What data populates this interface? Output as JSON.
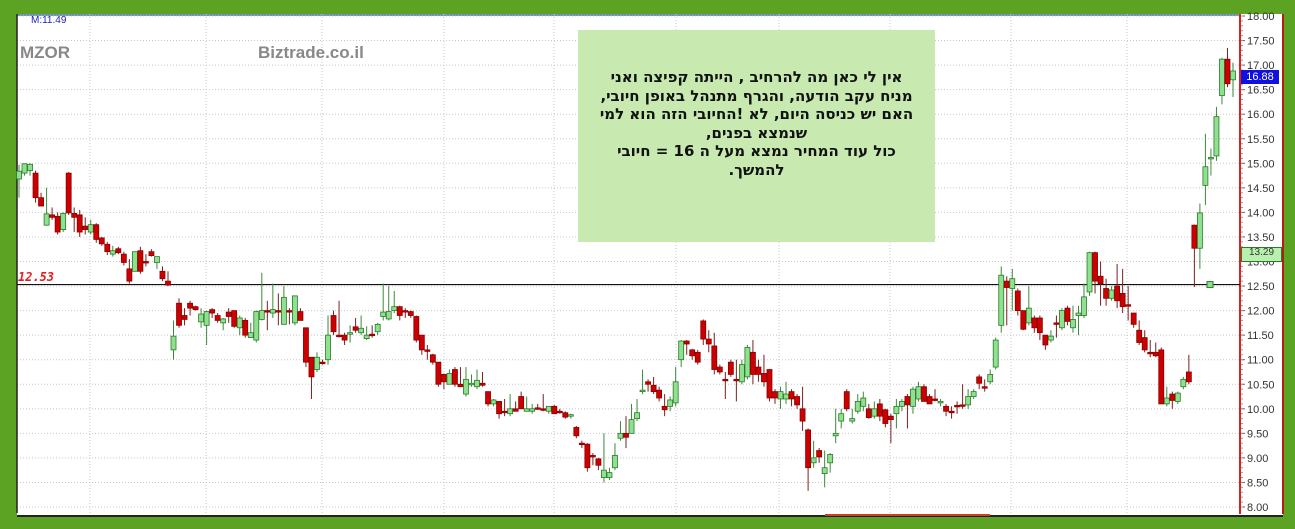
{
  "header": {
    "indicator_label": "M:11.49",
    "symbol": "MZOR",
    "watermark": "Biztrade.co.il"
  },
  "reference_line": {
    "label": "12.53",
    "value": 12.53,
    "color": "#e02020"
  },
  "note": {
    "lines": [
      "אין לי כאן מה להרחיב , הייתה קפיצה ואני",
      "מניח עקב הודעה, והגרף מתנהל באופן חיובי,",
      "האם יש כניסה היום, לא !החיובי הזה הוא למי",
      "שנמצא בפנים,",
      "כול עוד המחיר נמצא מעל ה 16 = חיובי",
      "להמשך."
    ],
    "background": "#c8eab0"
  },
  "price_badges": {
    "last": "16.88",
    "previous": "13.29"
  },
  "chart_data": {
    "type": "candlestick",
    "title": "",
    "xlabel": "",
    "ylabel": "",
    "ylim": [
      8.0,
      18.0
    ],
    "grid": true,
    "y_axis_side": "right",
    "y_ticks": [
      "8.00",
      "8.50",
      "9.00",
      "9.50",
      "10.00",
      "10.50",
      "11.00",
      "11.50",
      "12.00",
      "12.50",
      "13.00",
      "13.50",
      "14.00",
      "14.50",
      "15.00",
      "15.50",
      "16.00",
      "16.50",
      "17.00",
      "17.50",
      "18.00"
    ],
    "colors": {
      "up": "#8fe08f",
      "down": "#cc0000"
    },
    "ohlc": [
      [
        14.68,
        14.97,
        14.3,
        14.84
      ],
      [
        14.8,
        15.0,
        14.75,
        14.99
      ],
      [
        14.85,
        15.0,
        14.75,
        14.98
      ],
      [
        14.8,
        14.85,
        14.2,
        14.3
      ],
      [
        14.3,
        14.4,
        14.12,
        14.13
      ],
      [
        13.74,
        14.5,
        13.73,
        13.97
      ],
      [
        13.95,
        14.1,
        13.85,
        13.9
      ],
      [
        13.92,
        14.0,
        13.55,
        13.6
      ],
      [
        13.65,
        14.0,
        13.6,
        13.98
      ],
      [
        14.8,
        14.82,
        13.95,
        13.99
      ],
      [
        13.98,
        14.1,
        13.6,
        13.9
      ],
      [
        13.95,
        14.05,
        13.5,
        13.6
      ],
      [
        13.72,
        13.9,
        13.55,
        13.65
      ],
      [
        13.6,
        13.85,
        13.55,
        13.75
      ],
      [
        13.75,
        13.78,
        13.38,
        13.45
      ],
      [
        13.48,
        13.5,
        13.32,
        13.36
      ],
      [
        13.35,
        13.4,
        13.13,
        13.2
      ],
      [
        13.15,
        13.32,
        13.1,
        13.22
      ],
      [
        13.26,
        13.3,
        13.15,
        13.18
      ],
      [
        13.15,
        13.2,
        12.92,
        12.98
      ],
      [
        12.85,
        13.05,
        12.55,
        12.6
      ],
      [
        12.8,
        13.2,
        12.8,
        13.2
      ],
      [
        13.22,
        13.3,
        12.75,
        12.8
      ],
      [
        13.0,
        13.15,
        12.9,
        12.97
      ],
      [
        13.2,
        13.25,
        13.1,
        13.12
      ],
      [
        12.98,
        13.05,
        12.85,
        13.1
      ],
      [
        12.8,
        12.9,
        12.6,
        12.65
      ],
      [
        12.6,
        12.8,
        12.5,
        12.52
      ],
      [
        11.2,
        11.8,
        11.0,
        11.48
      ],
      [
        12.15,
        12.25,
        11.65,
        11.7
      ],
      [
        11.9,
        12.05,
        11.7,
        11.82
      ],
      [
        12.15,
        12.2,
        11.9,
        12.05
      ],
      [
        12.08,
        12.1,
        12.0,
        12.02
      ],
      [
        11.77,
        12.05,
        11.65,
        11.93
      ],
      [
        11.7,
        12.0,
        11.3,
        11.98
      ],
      [
        12.02,
        12.05,
        11.85,
        11.95
      ],
      [
        11.9,
        11.95,
        11.75,
        11.8
      ],
      [
        11.75,
        11.85,
        11.6,
        11.83
      ],
      [
        11.97,
        12.05,
        11.75,
        11.88
      ],
      [
        12.0,
        12.0,
        11.65,
        11.68
      ],
      [
        11.65,
        11.9,
        11.5,
        11.85
      ],
      [
        11.8,
        11.85,
        11.45,
        11.5
      ],
      [
        11.45,
        11.75,
        11.45,
        11.55
      ],
      [
        11.4,
        12.0,
        11.35,
        11.98
      ],
      [
        11.82,
        12.77,
        11.8,
        12.0
      ],
      [
        12.0,
        12.2,
        11.6,
        11.98
      ],
      [
        11.95,
        12.55,
        11.85,
        12.02
      ],
      [
        12.0,
        12.35,
        11.7,
        11.98
      ],
      [
        11.72,
        12.5,
        11.72,
        12.27
      ],
      [
        12.0,
        12.05,
        11.72,
        11.98
      ],
      [
        11.75,
        12.3,
        11.7,
        12.3
      ],
      [
        11.98,
        12.05,
        11.8,
        11.8
      ],
      [
        11.65,
        11.65,
        10.85,
        10.95
      ],
      [
        11.05,
        11.05,
        10.2,
        10.65
      ],
      [
        10.8,
        11.15,
        10.75,
        11.05
      ],
      [
        10.95,
        11.0,
        10.9,
        10.92
      ],
      [
        11.0,
        11.9,
        10.9,
        11.5
      ],
      [
        11.9,
        12.0,
        11.5,
        11.57
      ],
      [
        11.5,
        12.2,
        11.45,
        11.48
      ],
      [
        11.5,
        11.55,
        11.3,
        11.4
      ],
      [
        11.52,
        11.7,
        11.35,
        11.55
      ],
      [
        11.67,
        11.85,
        11.55,
        11.6
      ],
      [
        11.55,
        11.9,
        11.5,
        11.64
      ],
      [
        11.43,
        11.68,
        11.4,
        11.5
      ],
      [
        11.52,
        11.7,
        11.45,
        11.5
      ],
      [
        11.57,
        11.75,
        11.5,
        11.72
      ],
      [
        11.88,
        12.55,
        11.8,
        11.97
      ],
      [
        11.83,
        12.5,
        11.8,
        11.98
      ],
      [
        12.0,
        12.4,
        11.95,
        12.08
      ],
      [
        12.08,
        12.1,
        11.8,
        11.9
      ],
      [
        12.0,
        12.05,
        11.85,
        11.98
      ],
      [
        11.98,
        12.0,
        11.85,
        11.9
      ],
      [
        11.88,
        11.9,
        11.35,
        11.4
      ],
      [
        11.5,
        11.5,
        11.1,
        11.2
      ],
      [
        11.2,
        11.3,
        11.0,
        11.17
      ],
      [
        11.1,
        11.12,
        10.9,
        10.95
      ],
      [
        10.95,
        10.95,
        10.45,
        10.5
      ],
      [
        10.7,
        10.72,
        10.4,
        10.55
      ],
      [
        10.5,
        10.8,
        10.5,
        10.72
      ],
      [
        10.8,
        10.85,
        10.45,
        10.5
      ],
      [
        10.5,
        10.85,
        10.45,
        10.45
      ],
      [
        10.3,
        10.85,
        10.25,
        10.6
      ],
      [
        10.5,
        10.7,
        10.45,
        10.52
      ],
      [
        10.45,
        10.8,
        10.4,
        10.58
      ],
      [
        10.52,
        10.75,
        10.45,
        10.48
      ],
      [
        10.35,
        10.35,
        10.05,
        10.1
      ],
      [
        10.1,
        10.2,
        10.05,
        10.18
      ],
      [
        10.15,
        10.15,
        9.8,
        9.9
      ],
      [
        9.95,
        10.2,
        9.85,
        9.92
      ],
      [
        9.9,
        10.3,
        9.85,
        10.0
      ],
      [
        10.0,
        10.15,
        9.95,
        9.95
      ],
      [
        10.25,
        10.35,
        10.0,
        10.0
      ],
      [
        9.95,
        10.25,
        9.95,
        10.0
      ],
      [
        9.95,
        10.1,
        9.9,
        10.0
      ],
      [
        10.02,
        10.1,
        9.98,
        10.0
      ],
      [
        10.0,
        10.3,
        9.95,
        9.98
      ],
      [
        9.95,
        10.05,
        9.9,
        10.05
      ],
      [
        10.05,
        10.08,
        9.9,
        9.9
      ],
      [
        9.95,
        10.0,
        9.9,
        9.93
      ],
      [
        9.92,
        9.95,
        9.8,
        9.83
      ],
      [
        9.85,
        9.9,
        9.8,
        9.88
      ],
      [
        9.62,
        9.65,
        9.4,
        9.45
      ],
      [
        9.3,
        9.35,
        9.2,
        9.28
      ],
      [
        9.28,
        9.3,
        8.72,
        8.8
      ],
      [
        9.05,
        9.1,
        8.85,
        9.03
      ],
      [
        8.98,
        9.0,
        8.75,
        8.85
      ],
      [
        8.6,
        9.5,
        8.5,
        8.75
      ],
      [
        8.6,
        8.8,
        8.55,
        8.7
      ],
      [
        8.8,
        9.3,
        8.75,
        9.05
      ],
      [
        9.4,
        9.75,
        9.35,
        9.5
      ],
      [
        9.5,
        9.85,
        9.2,
        9.42
      ],
      [
        9.5,
        10.1,
        9.5,
        9.78
      ],
      [
        9.8,
        10.2,
        9.75,
        9.92
      ],
      [
        10.35,
        10.8,
        10.3,
        10.38
      ],
      [
        10.55,
        10.6,
        10.35,
        10.5
      ],
      [
        10.48,
        10.65,
        10.3,
        10.35
      ],
      [
        10.38,
        10.45,
        10.15,
        10.22
      ],
      [
        10.05,
        10.3,
        9.85,
        9.98
      ],
      [
        10.05,
        10.25,
        9.95,
        10.18
      ],
      [
        10.12,
        10.85,
        10.05,
        10.55
      ],
      [
        11.0,
        11.4,
        10.85,
        11.38
      ],
      [
        11.38,
        11.4,
        11.1,
        11.32
      ],
      [
        11.2,
        11.22,
        11.0,
        11.08
      ],
      [
        11.15,
        11.2,
        10.9,
        10.95
      ],
      [
        11.79,
        11.82,
        11.3,
        11.42
      ],
      [
        11.42,
        11.6,
        11.15,
        11.32
      ],
      [
        11.28,
        11.55,
        10.7,
        10.8
      ],
      [
        10.85,
        10.9,
        10.7,
        10.75
      ],
      [
        10.6,
        10.75,
        10.2,
        10.58
      ],
      [
        10.95,
        11.0,
        10.65,
        10.7
      ],
      [
        10.6,
        11.0,
        10.15,
        10.58
      ],
      [
        10.55,
        11.0,
        10.5,
        10.9
      ],
      [
        10.65,
        11.3,
        10.6,
        11.25
      ],
      [
        11.15,
        11.4,
        10.5,
        10.7
      ],
      [
        10.85,
        11.0,
        10.55,
        10.7
      ],
      [
        10.72,
        11.1,
        10.45,
        10.55
      ],
      [
        10.8,
        10.8,
        10.15,
        10.22
      ],
      [
        10.35,
        10.4,
        10.1,
        10.22
      ],
      [
        10.2,
        10.45,
        10.0,
        10.35
      ],
      [
        10.2,
        10.55,
        10.1,
        10.3
      ],
      [
        10.35,
        10.4,
        10.05,
        10.2
      ],
      [
        10.25,
        10.3,
        10.0,
        10.08
      ],
      [
        10.0,
        10.45,
        9.55,
        9.75
      ],
      [
        9.57,
        9.6,
        8.33,
        8.8
      ],
      [
        8.9,
        9.35,
        8.8,
        9.0
      ],
      [
        9.15,
        9.2,
        8.9,
        9.02
      ],
      [
        8.68,
        9.15,
        8.4,
        8.8
      ],
      [
        8.9,
        9.1,
        8.7,
        9.07
      ],
      [
        9.45,
        10.0,
        9.3,
        9.5
      ],
      [
        9.75,
        10.0,
        9.6,
        9.9
      ],
      [
        10.35,
        10.4,
        9.95,
        10.0
      ],
      [
        9.75,
        10.0,
        9.7,
        9.8
      ],
      [
        9.95,
        10.3,
        9.9,
        10.15
      ],
      [
        10.05,
        10.35,
        9.95,
        10.22
      ],
      [
        10.0,
        10.1,
        9.8,
        9.82
      ],
      [
        9.85,
        10.15,
        9.8,
        10.0
      ],
      [
        10.1,
        10.2,
        9.75,
        9.85
      ],
      [
        9.98,
        10.0,
        9.62,
        9.7
      ],
      [
        9.85,
        9.9,
        9.3,
        9.78
      ],
      [
        9.9,
        10.2,
        9.6,
        10.05
      ],
      [
        10.05,
        10.2,
        9.95,
        10.15
      ],
      [
        10.25,
        10.3,
        9.6,
        10.08
      ],
      [
        10.05,
        10.45,
        9.9,
        10.4
      ],
      [
        10.2,
        10.55,
        10.15,
        10.45
      ],
      [
        10.45,
        10.5,
        10.15,
        10.15
      ],
      [
        10.25,
        10.3,
        10.1,
        10.1
      ],
      [
        10.2,
        10.4,
        10.15,
        10.18
      ],
      [
        10.12,
        10.2,
        10.05,
        10.15
      ],
      [
        10.05,
        10.1,
        9.85,
        9.95
      ],
      [
        9.95,
        10.05,
        9.8,
        9.92
      ],
      [
        10.07,
        10.15,
        9.9,
        10.05
      ],
      [
        10.08,
        10.5,
        10.0,
        10.05
      ],
      [
        10.08,
        10.4,
        10.0,
        10.25
      ],
      [
        10.25,
        10.4,
        10.2,
        10.35
      ],
      [
        10.65,
        10.7,
        10.4,
        10.52
      ],
      [
        10.45,
        10.6,
        10.35,
        10.43
      ],
      [
        10.55,
        10.8,
        10.5,
        10.7
      ],
      [
        10.85,
        11.45,
        10.8,
        11.4
      ],
      [
        11.7,
        12.9,
        11.55,
        12.72
      ],
      [
        12.6,
        12.7,
        11.7,
        12.47
      ],
      [
        12.45,
        12.85,
        12.0,
        12.65
      ],
      [
        12.4,
        12.45,
        11.9,
        12.0
      ],
      [
        12.0,
        12.0,
        11.6,
        11.62
      ],
      [
        11.75,
        12.5,
        11.7,
        12.05
      ],
      [
        11.85,
        11.9,
        11.55,
        11.65
      ],
      [
        11.85,
        11.9,
        11.4,
        11.55
      ],
      [
        11.5,
        11.5,
        11.2,
        11.3
      ],
      [
        11.4,
        11.6,
        11.35,
        11.48
      ],
      [
        11.75,
        11.9,
        11.45,
        11.73
      ],
      [
        11.65,
        12.05,
        11.6,
        12.0
      ],
      [
        12.05,
        12.1,
        11.7,
        11.78
      ],
      [
        11.65,
        12.1,
        11.55,
        11.82
      ],
      [
        11.9,
        12.1,
        11.5,
        11.95
      ],
      [
        11.9,
        12.55,
        11.85,
        12.28
      ],
      [
        12.38,
        13.2,
        12.3,
        13.18
      ],
      [
        13.18,
        13.2,
        12.35,
        12.6
      ],
      [
        12.7,
        13.0,
        12.1,
        12.55
      ],
      [
        12.45,
        12.65,
        12.1,
        12.25
      ],
      [
        12.25,
        12.5,
        12.2,
        12.42
      ],
      [
        12.5,
        12.95,
        12.05,
        12.2
      ],
      [
        12.35,
        12.85,
        11.95,
        12.08
      ],
      [
        12.12,
        12.5,
        11.8,
        12.1
      ],
      [
        11.95,
        11.95,
        11.65,
        11.72
      ],
      [
        11.6,
        11.8,
        11.3,
        11.35
      ],
      [
        11.45,
        11.6,
        11.15,
        11.2
      ],
      [
        11.15,
        11.4,
        11.05,
        11.12
      ],
      [
        11.15,
        11.35,
        11.05,
        11.08
      ],
      [
        11.2,
        11.25,
        10.1,
        10.1
      ],
      [
        10.1,
        10.45,
        10.05,
        10.22
      ],
      [
        10.3,
        10.35,
        10.0,
        10.17
      ],
      [
        10.15,
        10.35,
        10.1,
        10.32
      ],
      [
        10.45,
        10.65,
        10.4,
        10.6
      ],
      [
        10.75,
        11.1,
        10.5,
        10.55
      ],
      [
        13.74,
        13.75,
        12.48,
        13.27
      ],
      [
        13.27,
        14.18,
        12.85,
        13.99
      ],
      [
        14.55,
        15.6,
        14.15,
        14.93
      ],
      [
        15.1,
        15.3,
        14.75,
        15.12
      ],
      [
        15.15,
        16.15,
        15.05,
        15.95
      ],
      [
        16.38,
        17.15,
        16.2,
        17.12
      ],
      [
        17.12,
        17.35,
        16.55,
        16.62
      ],
      [
        16.7,
        17.05,
        16.35,
        16.88
      ]
    ]
  }
}
